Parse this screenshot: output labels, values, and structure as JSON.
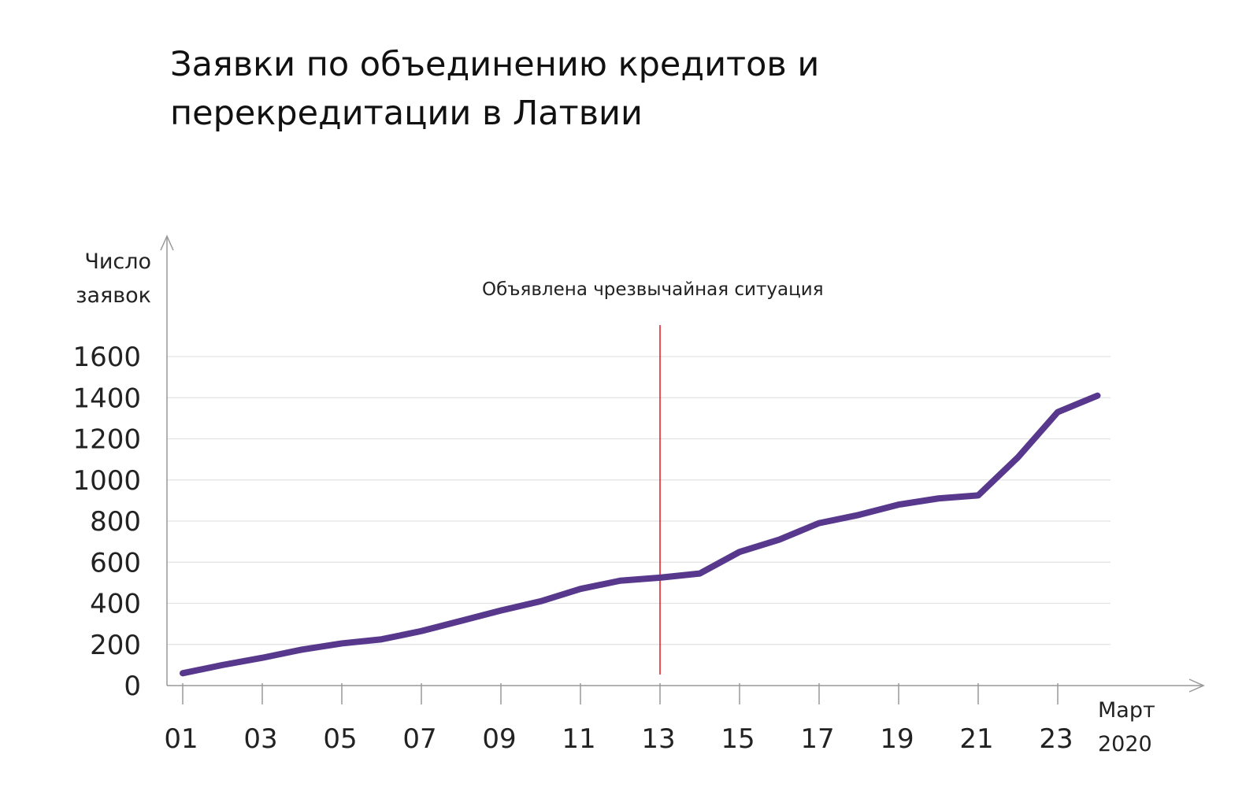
{
  "chart_data": {
    "type": "line",
    "title_lines": [
      "Заявки по объединению кредитов и",
      "перекредитации в Латвии"
    ],
    "ylabel_lines": [
      "Число",
      "заявок"
    ],
    "xlabel_lines": [
      "Март",
      "2020"
    ],
    "ylim": [
      0,
      1600
    ],
    "yticks": [
      0,
      200,
      400,
      600,
      800,
      1000,
      1200,
      1400,
      1600
    ],
    "ytick_labels": [
      "0",
      "200",
      "400",
      "600",
      "800",
      "1000",
      "1200",
      "1400",
      "1600"
    ],
    "xlim": [
      1,
      23
    ],
    "xticks": [
      1,
      3,
      5,
      7,
      9,
      11,
      13,
      15,
      17,
      19,
      21,
      23
    ],
    "xtick_labels": [
      "01",
      "03",
      "05",
      "07",
      "09",
      "11",
      "13",
      "15",
      "17",
      "19",
      "21",
      "23"
    ],
    "grid": true,
    "series": [
      {
        "x": [
          1,
          2,
          3,
          4,
          5,
          6,
          7,
          8,
          9,
          10,
          11,
          12,
          13,
          14,
          15,
          16,
          17,
          18,
          19,
          20,
          21,
          22,
          23,
          24
        ],
        "values": [
          60,
          100,
          135,
          175,
          205,
          225,
          265,
          315,
          365,
          410,
          470,
          510,
          525,
          545,
          650,
          710,
          790,
          830,
          880,
          910,
          925,
          1110,
          1330,
          1410
        ],
        "color": "#57388c"
      }
    ],
    "annotations": [
      {
        "type": "vline",
        "x": 13,
        "label": "Объявлена чрезвычайная ситуация",
        "color": "#e8141e"
      }
    ]
  }
}
